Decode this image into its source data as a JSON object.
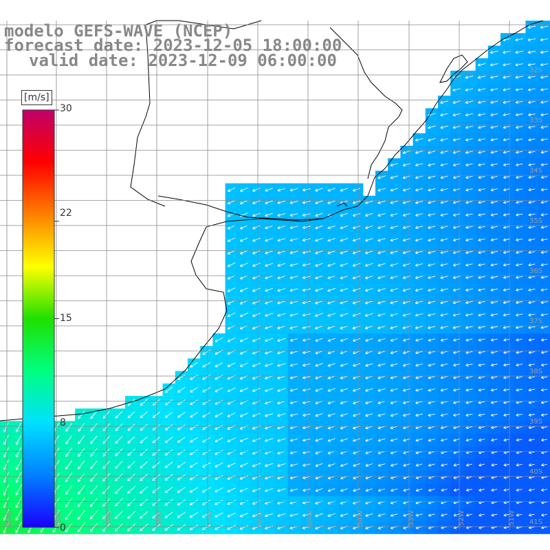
{
  "title": {
    "line1": "modelo GEFS-WAVE (NCEP)",
    "line2": "forecast date: 2023-12-05 18:00:00",
    "line3": "valid date: 2023-12-09 06:00:00"
  },
  "colorbar": {
    "unit": "[m/s]",
    "range": [
      0,
      30
    ],
    "tick_labels": [
      "30",
      "22",
      "15",
      "8",
      "0"
    ],
    "tick_values": [
      30,
      22,
      15,
      8,
      0
    ],
    "colors": [
      "#1a00ff",
      "#0080ff",
      "#00e0ff",
      "#00ff80",
      "#20e000",
      "#ffff00",
      "#ff8000",
      "#ff0000",
      "#c0006a"
    ]
  },
  "map": {
    "lat_labels": [
      "32S",
      "33S",
      "34S",
      "35S",
      "36S",
      "37S",
      "38S",
      "39S",
      "40S",
      "41S"
    ],
    "lon_labels": [
      "61W",
      "60W",
      "59W",
      "58W",
      "57W",
      "56W",
      "55W",
      "54W",
      "53W",
      "52W",
      "51W"
    ],
    "lat_range": [
      -41.5,
      -30.5
    ],
    "lon_range": [
      -62,
      -51
    ],
    "field": "wind speed",
    "arrow_color": "#ffffff",
    "land_color": "#ffffff",
    "grid_color": "#888888"
  }
}
